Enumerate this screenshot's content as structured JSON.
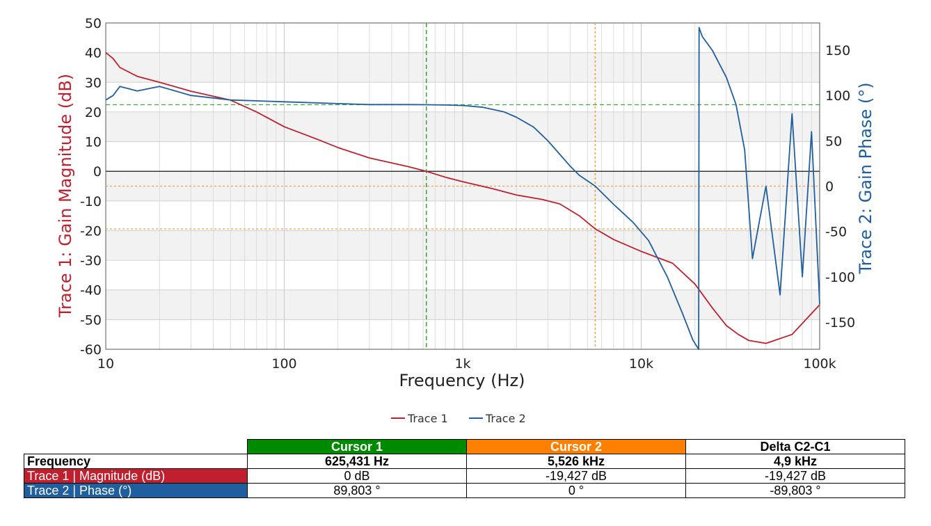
{
  "chart_data": {
    "type": "line",
    "xlabel": "Frequency (Hz)",
    "ylabel": "Trace 1: Gain Magnitude (dB)",
    "y2label": "Trace 2: Gain Phase (°)",
    "xscale": "log",
    "xlim": [
      10,
      100000
    ],
    "ylim": [
      -60,
      50
    ],
    "y2lim": [
      -180,
      180
    ],
    "x_ticks": [
      10,
      100,
      1000,
      10000,
      100000
    ],
    "x_tick_labels": [
      "10",
      "100",
      "1k",
      "10k",
      "100k"
    ],
    "y_ticks": [
      50,
      40,
      30,
      20,
      10,
      0,
      -10,
      -20,
      -30,
      -40,
      -50,
      -60
    ],
    "y_tick_labels": [
      "50",
      "40",
      "30",
      "20",
      "10",
      "0",
      "-10",
      "-20",
      "-30",
      "-40",
      "-50",
      "-60"
    ],
    "y2_ticks": [
      150,
      100,
      50,
      0,
      -50,
      -100,
      -150
    ],
    "y2_tick_labels": [
      "150",
      "100",
      "50",
      "0",
      "-50",
      "-100",
      "-150"
    ],
    "grid": true,
    "legend": "bottom-center",
    "series": [
      {
        "name": "Trace 1",
        "axis": "left",
        "color": "#c0202e",
        "x": [
          10,
          11,
          12,
          15,
          20,
          30,
          50,
          70,
          100,
          150,
          200,
          300,
          500,
          625.431,
          800,
          1000,
          1500,
          2000,
          2800,
          3500,
          4500,
          5526,
          7000,
          10000,
          15000,
          20000,
          25000,
          30000,
          35000,
          40000,
          50000,
          70000,
          100000
        ],
        "y": [
          40,
          38,
          35,
          32,
          30,
          27,
          24,
          20,
          15,
          11,
          8,
          4.5,
          1.5,
          0,
          -2,
          -3.5,
          -6,
          -8,
          -9.5,
          -11,
          -15,
          -19.4,
          -23,
          -27,
          -31,
          -38,
          -46,
          -52,
          -55,
          -57,
          -58,
          -55,
          -45
        ]
      },
      {
        "name": "Trace 2",
        "axis": "right",
        "color": "#1f5fa0",
        "x": [
          10,
          11,
          12,
          15,
          20,
          30,
          50,
          100,
          200,
          300,
          500,
          625.431,
          800,
          1000,
          1300,
          1700,
          2000,
          2500,
          3000,
          3500,
          4000,
          4500,
          5526,
          7000,
          9000,
          11000,
          14000,
          17000,
          19500,
          21000,
          21100,
          22000,
          25000,
          30000,
          34000,
          38000,
          42000,
          50000,
          60000,
          70000,
          80000,
          90000,
          100000
        ],
        "y": [
          95,
          100,
          110,
          105,
          110,
          100,
          95,
          93,
          91,
          90,
          90,
          89.8,
          89.5,
          89,
          87,
          82,
          76,
          65,
          50,
          35,
          22,
          12,
          0,
          -20,
          -40,
          -60,
          -100,
          -140,
          -170,
          -180,
          175,
          165,
          150,
          120,
          90,
          40,
          -80,
          0,
          -120,
          80,
          -100,
          60,
          -130
        ]
      }
    ]
  },
  "cursors": {
    "blank": "",
    "headers": [
      "Cursor 1",
      "Cursor 2",
      "Delta C2-C1"
    ],
    "header_colors": [
      "#008a00",
      "#ff8000",
      "#ffffff"
    ],
    "cursor1_color": "#3fa63f",
    "cursor2_color": "#f0a040",
    "cursor1_freq_hz": 625.431,
    "cursor2_freq_hz": 5526,
    "rows": [
      {
        "label": "Frequency",
        "values": [
          "625,431 Hz",
          "5,526 kHz",
          "4,9 kHz"
        ],
        "color": "#ffffff"
      },
      {
        "label": "Trace 1 | Magnitude (dB)",
        "values": [
          "0 dB",
          "-19,427 dB",
          "-19,427 dB"
        ],
        "color": "#c0202e"
      },
      {
        "label": "Trace 2 | Phase (°)",
        "values": [
          "89,803 °",
          "0 °",
          "-89,803 °"
        ],
        "color": "#1f5fa0"
      }
    ]
  }
}
